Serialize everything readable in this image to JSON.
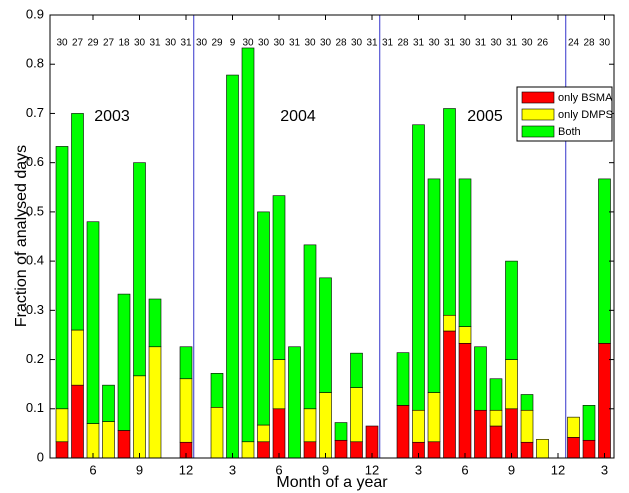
{
  "chart_data": {
    "type": "stacked-bar",
    "x_label": "Month of a year",
    "y_label": "Fraction of analysed days",
    "categories": [
      null,
      null,
      "6",
      null,
      null,
      "9",
      null,
      null,
      "12",
      null,
      null,
      "3",
      null,
      null,
      "6",
      null,
      null,
      "9",
      null,
      null,
      "12",
      null,
      null,
      "3",
      null,
      null,
      "6",
      null,
      null,
      "9",
      null,
      null,
      "12",
      null,
      null,
      "3"
    ],
    "day_counts": [
      30,
      27,
      29,
      27,
      18,
      30,
      31,
      30,
      31,
      30,
      29,
      9,
      30,
      30,
      30,
      31,
      30,
      30,
      28,
      30,
      31,
      31,
      28,
      31,
      30,
      31,
      30,
      31,
      30,
      31,
      30,
      26,
      null,
      24,
      28,
      30
    ],
    "annotations": [
      "2003",
      "2004",
      "2005"
    ],
    "series": [
      {
        "name": "only BSMA",
        "color": "#ff0000",
        "values": [
          0.033,
          0.148,
          0,
          0,
          0.056,
          0,
          0,
          0,
          0.032,
          0,
          0,
          0,
          0,
          0.033,
          0.1,
          0,
          0.033,
          0,
          0.036,
          0.033,
          0.065,
          0,
          0.107,
          0.032,
          0.033,
          0.258,
          0.233,
          0.097,
          0.065,
          0.1,
          0.032,
          0,
          0,
          0.042,
          0.036,
          0.233
        ]
      },
      {
        "name": "only DMPS",
        "color": "#ffff00",
        "values": [
          0.067,
          0.112,
          0.07,
          0.074,
          0,
          0.167,
          0.226,
          0,
          0.129,
          0,
          0.103,
          0,
          0.033,
          0.034,
          0.1,
          0,
          0.067,
          0.133,
          0,
          0.11,
          0,
          0,
          0,
          0.065,
          0.1,
          0.032,
          0.034,
          0,
          0.032,
          0.1,
          0.065,
          0.038,
          0,
          0.041,
          0,
          0
        ]
      },
      {
        "name": "Both",
        "color": "#00ff00",
        "values": [
          0.533,
          0.44,
          0.41,
          0.074,
          0.277,
          0.433,
          0.097,
          0,
          0.065,
          0,
          0.069,
          0.778,
          0.8,
          0.433,
          0.333,
          0.226,
          0.333,
          0.233,
          0.036,
          0.07,
          0,
          0,
          0.107,
          0.58,
          0.434,
          0.42,
          0.3,
          0.129,
          0.064,
          0.2,
          0.032,
          0,
          0,
          0,
          0.071,
          0.334
        ]
      }
    ],
    "ylim": [
      0,
      0.9
    ],
    "yticks": [
      0,
      0.1,
      0.2,
      0.3,
      0.4,
      0.5,
      0.6,
      0.7,
      0.8,
      0.9
    ],
    "legend": "upper right",
    "grid": false
  }
}
